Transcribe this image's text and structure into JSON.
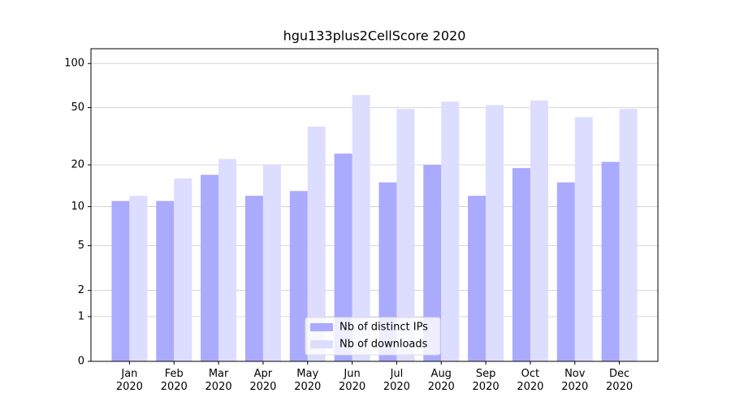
{
  "chart_data": {
    "type": "bar",
    "title": "hgu133plus2CellScore 2020",
    "categories": [
      "Jan\n2020",
      "Feb\n2020",
      "Mar\n2020",
      "Apr\n2020",
      "May\n2020",
      "Jun\n2020",
      "Jul\n2020",
      "Aug\n2020",
      "Sep\n2020",
      "Oct\n2020",
      "Nov\n2020",
      "Dec\n2020"
    ],
    "series": [
      {
        "name": "Nb of distinct IPs",
        "color": "#aaaaff",
        "values": [
          11,
          11,
          17,
          12,
          13,
          24,
          15,
          20,
          12,
          19,
          15,
          21
        ]
      },
      {
        "name": "Nb of downloads",
        "color": "#ddddff",
        "values": [
          12,
          16,
          22,
          20,
          37,
          61,
          49,
          55,
          52,
          56,
          43,
          49
        ]
      }
    ],
    "yscale": "log1p",
    "ylim": [
      0,
      126
    ],
    "yticks": [
      0,
      1,
      2,
      5,
      10,
      20,
      50,
      100
    ],
    "grid": true,
    "legend": "lower center"
  }
}
